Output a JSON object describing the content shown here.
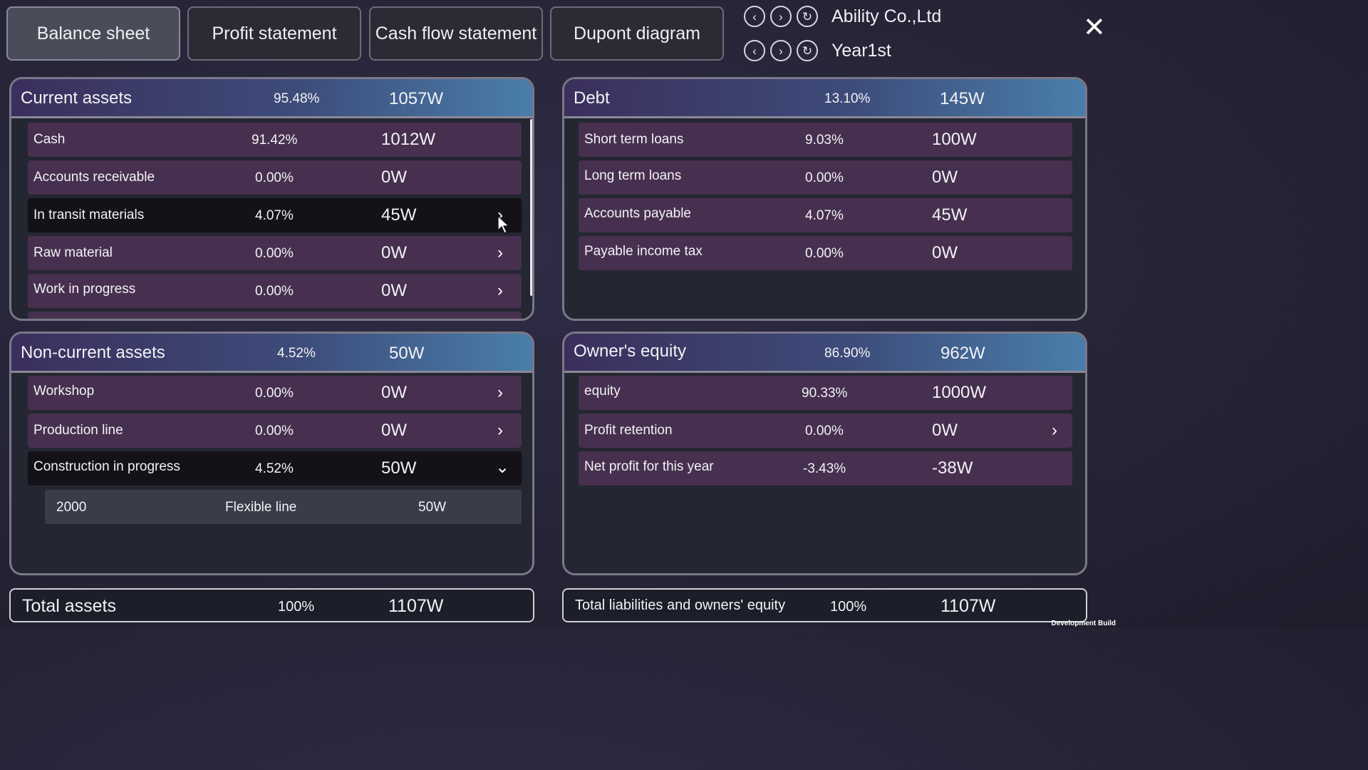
{
  "tabs": [
    {
      "label": "Balance sheet",
      "active": true
    },
    {
      "label": "Profit statement",
      "active": false
    },
    {
      "label": "Cash flow statement",
      "active": false
    },
    {
      "label": "Dupont diagram",
      "active": false
    }
  ],
  "nav": {
    "company": "Ability Co.,Ltd",
    "year": "Year1st",
    "prev_icon": "chevron-left-icon",
    "next_icon": "chevron-right-icon",
    "refresh_icon": "refresh-icon",
    "close_icon": "close-icon"
  },
  "current_assets": {
    "title": "Current assets",
    "percent": "95.48%",
    "amount": "1057W",
    "rows": [
      {
        "label": "Cash",
        "percent": "91.42%",
        "amount": "1012W"
      },
      {
        "label": "Accounts receivable",
        "percent": "0.00%",
        "amount": "0W"
      },
      {
        "label": "In transit materials",
        "percent": "4.07%",
        "amount": "45W"
      },
      {
        "label": "Raw material",
        "percent": "0.00%",
        "amount": "0W"
      },
      {
        "label": "Work in progress",
        "percent": "0.00%",
        "amount": "0W"
      }
    ]
  },
  "debt": {
    "title": "Debt",
    "percent": "13.10%",
    "amount": "145W",
    "rows": [
      {
        "label": "Short term loans",
        "percent": "9.03%",
        "amount": "100W"
      },
      {
        "label": "Long term loans",
        "percent": "0.00%",
        "amount": "0W"
      },
      {
        "label": "Accounts payable",
        "percent": "4.07%",
        "amount": "45W"
      },
      {
        "label": "Payable income tax",
        "percent": "0.00%",
        "amount": "0W"
      }
    ]
  },
  "non_current_assets": {
    "title": "Non-current assets",
    "percent": "4.52%",
    "amount": "50W",
    "rows": [
      {
        "label": "Workshop",
        "percent": "0.00%",
        "amount": "0W"
      },
      {
        "label": "Production line",
        "percent": "0.00%",
        "amount": "0W"
      },
      {
        "label": "Construction in progress",
        "percent": "4.52%",
        "amount": "50W"
      }
    ],
    "subrow": {
      "code": "2000",
      "name": "Flexible line",
      "amount": "50W"
    }
  },
  "owners_equity": {
    "title": "Owner's equity",
    "percent": "86.90%",
    "amount": "962W",
    "rows": [
      {
        "label": "equity",
        "percent": "90.33%",
        "amount": "1000W"
      },
      {
        "label": "Profit retention",
        "percent": "0.00%",
        "amount": "0W"
      },
      {
        "label": "Net profit for this year",
        "percent": "-3.43%",
        "amount": "-38W"
      }
    ]
  },
  "totals": {
    "assets": {
      "label": "Total assets",
      "percent": "100%",
      "amount": "1107W"
    },
    "liabilities": {
      "label": "Total liabilities and owners' equity",
      "percent": "100%",
      "amount": "1107W"
    }
  },
  "watermark": "Development Build"
}
